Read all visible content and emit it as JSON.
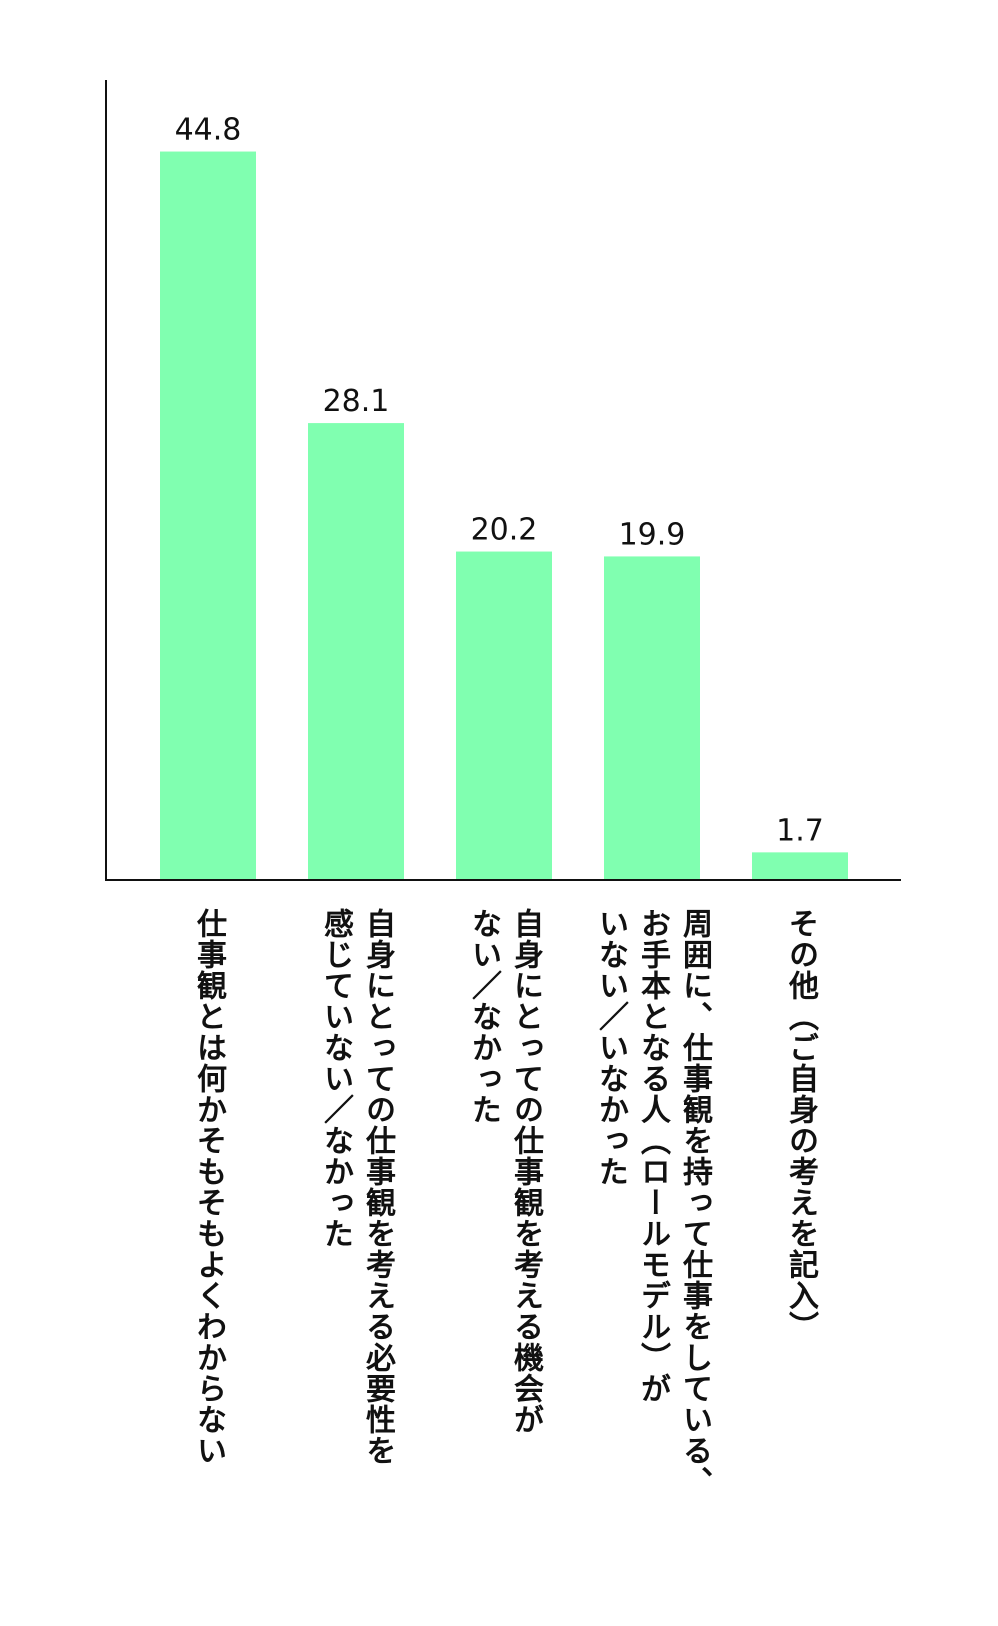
{
  "chart_data": {
    "type": "bar",
    "categories": [
      "仕事観とは何かそもそもよくわからない",
      "自身にとっての仕事観を考える必要性を\n感じていない／なかった",
      "自身にとっての仕事観を考える機会が\nない／なかった",
      "周囲に、仕事観を持って仕事をしている、\nお手本となる人（ロールモデル）が\nいない／いなかった",
      "その他（ご自身の考えを記入）"
    ],
    "values": [
      44.8,
      28.1,
      20.2,
      19.9,
      1.7
    ],
    "value_labels": [
      "44.8",
      "28.1",
      "20.2",
      "19.9",
      "1.7"
    ],
    "ylim": [
      0,
      49.2
    ],
    "orientation": "vertical",
    "grid": false,
    "legend": "none",
    "bar_color": "#80ffb0",
    "axis_color": "#111111"
  }
}
